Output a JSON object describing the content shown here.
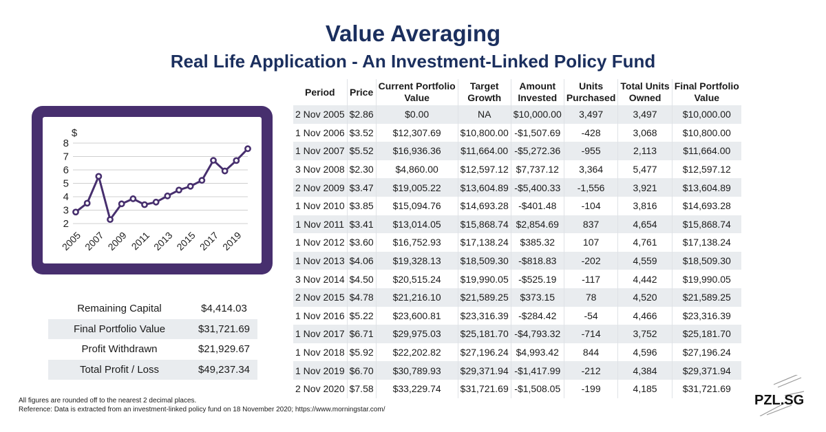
{
  "header": {
    "title": "Value Averaging",
    "subtitle": "Real Life Application - An Investment-Linked Policy Fund"
  },
  "colors": {
    "title": "#1b2f5e",
    "chart_frame": "#472f6e",
    "chart_line": "#472f6e",
    "row_stripe": "#e9ecef"
  },
  "chart_data": {
    "type": "line",
    "ylabel": "$",
    "xlabel": "",
    "ylim": [
      2,
      8
    ],
    "yticks": [
      "2",
      "3",
      "4",
      "5",
      "6",
      "7",
      "8"
    ],
    "xtick_labels": [
      "2005",
      "2007",
      "2009",
      "2011",
      "2013",
      "2015",
      "2017",
      "2019"
    ],
    "grid": true,
    "x": [
      2005,
      2006,
      2007,
      2008,
      2009,
      2010,
      2011,
      2012,
      2013,
      2014,
      2015,
      2016,
      2017,
      2018,
      2019,
      2020
    ],
    "values": [
      2.86,
      3.52,
      5.52,
      2.3,
      3.47,
      3.85,
      3.41,
      3.6,
      4.06,
      4.5,
      4.78,
      5.22,
      6.71,
      5.92,
      6.7,
      7.58
    ]
  },
  "table": {
    "headers": [
      [
        "Period"
      ],
      [
        "Price"
      ],
      [
        "Current Portfolio",
        "Value"
      ],
      [
        "Target",
        "Growth"
      ],
      [
        "Amount",
        "Invested"
      ],
      [
        "Units",
        "Purchased"
      ],
      [
        "Total Units",
        "Owned"
      ],
      [
        "Final Portfolio",
        "Value"
      ]
    ],
    "rows": [
      [
        "2 Nov 2005",
        "$2.86",
        "$0.00",
        "NA",
        "$10,000.00",
        "3,497",
        "3,497",
        "$10,000.00"
      ],
      [
        "1 Nov 2006",
        "$3.52",
        "$12,307.69",
        "$10,800.00",
        "-$1,507.69",
        "-428",
        "3,068",
        "$10,800.00"
      ],
      [
        "1 Nov 2007",
        "$5.52",
        "$16,936.36",
        "$11,664.00",
        "-$5,272.36",
        "-955",
        "2,113",
        "$11,664.00"
      ],
      [
        "3 Nov 2008",
        "$2.30",
        "$4,860.00",
        "$12,597.12",
        "$7,737.12",
        "3,364",
        "5,477",
        "$12,597.12"
      ],
      [
        "2 Nov 2009",
        "$3.47",
        "$19,005.22",
        "$13,604.89",
        "-$5,400.33",
        "-1,556",
        "3,921",
        "$13,604.89"
      ],
      [
        "1 Nov 2010",
        "$3.85",
        "$15,094.76",
        "$14,693.28",
        "-$401.48",
        "-104",
        "3,816",
        "$14,693.28"
      ],
      [
        "1 Nov 2011",
        "$3.41",
        "$13,014.05",
        "$15,868.74",
        "$2,854.69",
        "837",
        "4,654",
        "$15,868.74"
      ],
      [
        "1 Nov 2012",
        "$3.60",
        "$16,752.93",
        "$17,138.24",
        "$385.32",
        "107",
        "4,761",
        "$17,138.24"
      ],
      [
        "1 Nov 2013",
        "$4.06",
        "$19,328.13",
        "$18,509.30",
        "-$818.83",
        "-202",
        "4,559",
        "$18,509.30"
      ],
      [
        "3 Nov 2014",
        "$4.50",
        "$20,515.24",
        "$19,990.05",
        "-$525.19",
        "-117",
        "4,442",
        "$19,990.05"
      ],
      [
        "2 Nov 2015",
        "$4.78",
        "$21,216.10",
        "$21,589.25",
        "$373.15",
        "78",
        "4,520",
        "$21,589.25"
      ],
      [
        "1 Nov 2016",
        "$5.22",
        "$23,600.81",
        "$23,316.39",
        "-$284.42",
        "-54",
        "4,466",
        "$23,316.39"
      ],
      [
        "1 Nov 2017",
        "$6.71",
        "$29,975.03",
        "$25,181.70",
        "-$4,793.32",
        "-714",
        "3,752",
        "$25,181.70"
      ],
      [
        "1 Nov 2018",
        "$5.92",
        "$22,202.82",
        "$27,196.24",
        "$4,993.42",
        "844",
        "4,596",
        "$27,196.24"
      ],
      [
        "1 Nov 2019",
        "$6.70",
        "$30,789.93",
        "$29,371.94",
        "-$1,417.99",
        "-212",
        "4,384",
        "$29,371.94"
      ],
      [
        "2 Nov 2020",
        "$7.58",
        "$33,229.74",
        "$31,721.69",
        "-$1,508.05",
        "-199",
        "4,185",
        "$31,721.69"
      ]
    ]
  },
  "summary": [
    {
      "label": "Remaining Capital",
      "value": "$4,414.03"
    },
    {
      "label": "Final Portfolio Value",
      "value": "$31,721.69"
    },
    {
      "label": "Profit Withdrawn",
      "value": "$21,929.67"
    },
    {
      "label": "Total Profit / Loss",
      "value": "$49,237.34"
    }
  ],
  "footnotes": [
    "All figures are rounded off to the nearest 2 decimal places.",
    "Reference: Data is extracted from an investment-linked policy fund on 18 November 2020; https://www.morningstar.com/"
  ],
  "brand": {
    "logo_text": "PZL.SG"
  }
}
